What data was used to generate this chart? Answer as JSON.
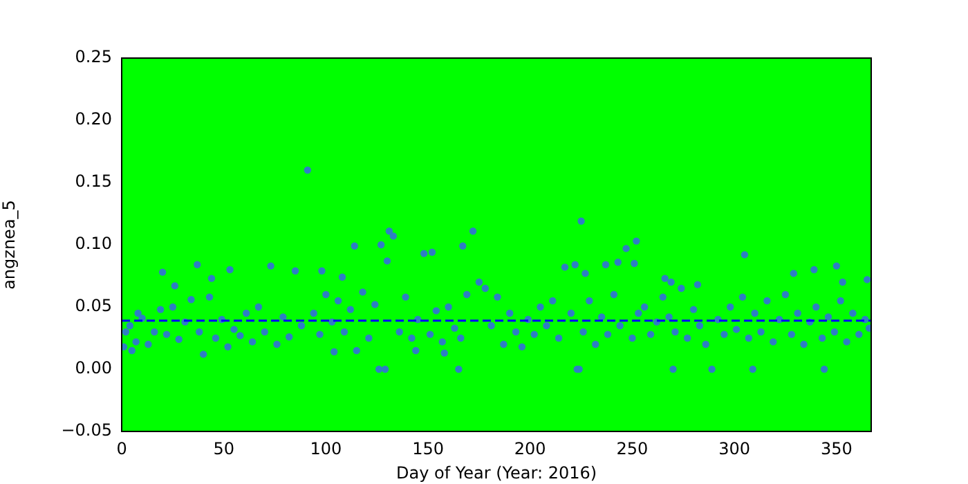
{
  "chart_data": {
    "type": "scatter",
    "xlabel": "Day of Year (Year: 2016)",
    "ylabel": "angznea_5",
    "xlim": [
      0,
      367
    ],
    "xticks": [
      0,
      50,
      100,
      150,
      200,
      250,
      300,
      350
    ],
    "ylim": [
      -0.05,
      0.25
    ],
    "yticks": [
      {
        "value": -0.05,
        "label": "−0.05"
      },
      {
        "value": 0,
        "label": "0.00"
      },
      {
        "value": 0.05,
        "label": "0.05"
      },
      {
        "value": 0.1,
        "label": "0.10"
      },
      {
        "value": 0.15,
        "label": "0.15"
      },
      {
        "value": 0.2,
        "label": "0.20"
      },
      {
        "value": 0.25,
        "label": "0.25"
      }
    ],
    "grid": false,
    "legend": false,
    "marker": "circle",
    "ref_lines": [
      {
        "axis": "y",
        "value": 0.039,
        "color": "#0000ff",
        "line_style": "dashed"
      }
    ],
    "series": [
      {
        "color": "#2e7ec4",
        "x": [
          1,
          2,
          4,
          5,
          7,
          8,
          10,
          13,
          16,
          19,
          20,
          22,
          25,
          26,
          28,
          31,
          34,
          37,
          38,
          40,
          43,
          44,
          46,
          49,
          52,
          53,
          55,
          58,
          61,
          64,
          67,
          70,
          73,
          76,
          79,
          82,
          85,
          88,
          91,
          94,
          97,
          98,
          100,
          103,
          104,
          106,
          108,
          109,
          112,
          114,
          115,
          118,
          121,
          124,
          126,
          127,
          129,
          130,
          131,
          133,
          136,
          139,
          142,
          144,
          145,
          148,
          151,
          152,
          154,
          157,
          158,
          160,
          163,
          165,
          166,
          167,
          169,
          172,
          175,
          178,
          181,
          184,
          187,
          190,
          193,
          196,
          199,
          202,
          205,
          208,
          211,
          214,
          217,
          220,
          222,
          223,
          224,
          225,
          226,
          227,
          229,
          232,
          235,
          237,
          238,
          241,
          243,
          244,
          247,
          250,
          251,
          252,
          253,
          256,
          259,
          262,
          265,
          266,
          268,
          269,
          270,
          271,
          274,
          277,
          280,
          282,
          283,
          286,
          289,
          292,
          295,
          298,
          301,
          304,
          305,
          307,
          309,
          310,
          313,
          316,
          319,
          322,
          325,
          328,
          329,
          331,
          334,
          337,
          339,
          340,
          343,
          344,
          346,
          349,
          350,
          352,
          353,
          355,
          358,
          361,
          364,
          365,
          366
        ],
        "values": [
          0.018,
          0.03,
          0.035,
          0.015,
          0.022,
          0.045,
          0.041,
          0.02,
          0.03,
          0.048,
          0.078,
          0.028,
          0.05,
          0.067,
          0.024,
          0.038,
          0.056,
          0.084,
          0.03,
          0.012,
          0.058,
          0.073,
          0.025,
          0.04,
          0.018,
          0.08,
          0.032,
          0.027,
          0.045,
          0.022,
          0.05,
          0.03,
          0.083,
          0.02,
          0.042,
          0.026,
          0.079,
          0.035,
          0.16,
          0.045,
          0.028,
          0.079,
          0.06,
          0.038,
          0.014,
          0.055,
          0.074,
          0.03,
          0.048,
          0.099,
          0.015,
          0.062,
          0.025,
          0.052,
          0,
          0.1,
          0,
          0.087,
          0.111,
          0.107,
          0.03,
          0.058,
          0.025,
          0.015,
          0.04,
          0.093,
          0.028,
          0.094,
          0.047,
          0.022,
          0.013,
          0.05,
          0.033,
          0,
          0.025,
          0.099,
          0.06,
          0.111,
          0.07,
          0.065,
          0.035,
          0.058,
          0.02,
          0.045,
          0.03,
          0.018,
          0.04,
          0.028,
          0.05,
          0.035,
          0.055,
          0.025,
          0.082,
          0.045,
          0.084,
          0,
          0,
          0.119,
          0.03,
          0.077,
          0.055,
          0.02,
          0.042,
          0.084,
          0.028,
          0.06,
          0.086,
          0.035,
          0.097,
          0.025,
          0.085,
          0.103,
          0.045,
          0.05,
          0.028,
          0.038,
          0.058,
          0.073,
          0.042,
          0.07,
          0,
          0.03,
          0.065,
          0.025,
          0.048,
          0.068,
          0.035,
          0.02,
          0,
          0.04,
          0.028,
          0.05,
          0.032,
          0.058,
          0.092,
          0.025,
          0,
          0.045,
          0.03,
          0.055,
          0.022,
          0.04,
          0.06,
          0.028,
          0.077,
          0.045,
          0.02,
          0.038,
          0.08,
          0.05,
          0.025,
          0,
          0.042,
          0.03,
          0.083,
          0.055,
          0.07,
          0.022,
          0.045,
          0.028,
          0.04,
          0.072,
          0.033
        ]
      }
    ]
  }
}
